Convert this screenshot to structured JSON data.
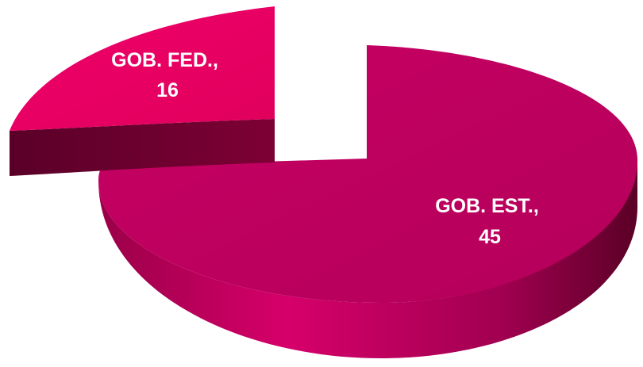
{
  "chart_data": {
    "type": "pie",
    "title": "",
    "slices": [
      {
        "label": "GOB. FED.",
        "value": 16,
        "color": "#e8005e",
        "side_color": "#6e0030",
        "exploded": true
      },
      {
        "label": "GOB. EST.",
        "value": 45,
        "color": "#c2005f",
        "side_color": "#7a0038",
        "exploded": false
      }
    ],
    "label_format": "{label},\n{value}",
    "three_d": true
  }
}
